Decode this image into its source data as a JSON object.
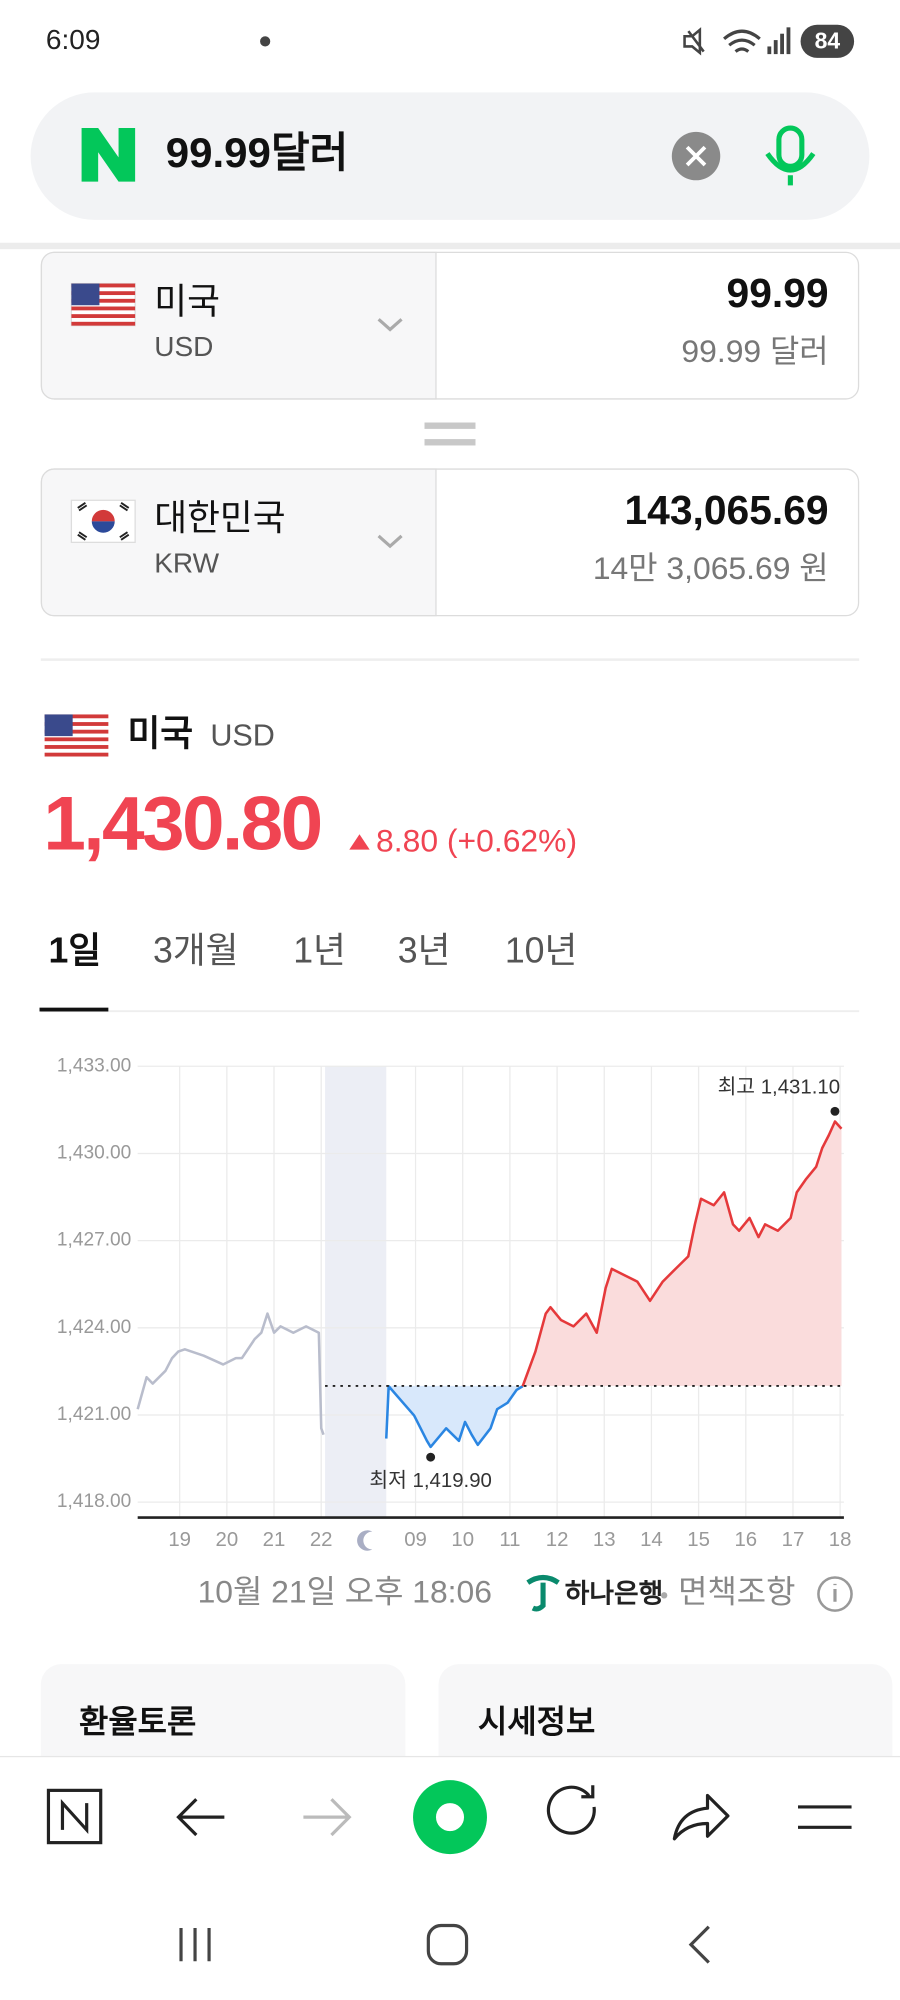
{
  "status_bar": {
    "time": "6:09",
    "battery": "84"
  },
  "search": {
    "query": "99.99달러"
  },
  "converter": {
    "from": {
      "country": "미국",
      "code": "USD",
      "amount": "99.99",
      "amount_text": "99.99 달러"
    },
    "to": {
      "country": "대한민국",
      "code": "KRW",
      "amount": "143,065.69",
      "amount_text": "14만 3,065.69 원"
    }
  },
  "quote": {
    "country": "미국",
    "code": "USD",
    "price": "1,430.80",
    "change": "8.80 (+0.62%)"
  },
  "tabs": [
    "1일",
    "3개월",
    "1년",
    "3년",
    "10년"
  ],
  "chart_data": {
    "type": "line",
    "xlim": [
      0.11,
      15.08
    ],
    "ylim": [
      1417.47,
      1433
    ],
    "xticks": [
      {
        "value": 1,
        "label": "19"
      },
      {
        "value": 2,
        "label": "20"
      },
      {
        "value": 3,
        "label": "21"
      },
      {
        "value": 4,
        "label": "22"
      },
      {
        "value": 6,
        "label": "09"
      },
      {
        "value": 7,
        "label": "10"
      },
      {
        "value": 8,
        "label": "11"
      },
      {
        "value": 9,
        "label": "12"
      },
      {
        "value": 10,
        "label": "13"
      },
      {
        "value": 11,
        "label": "14"
      },
      {
        "value": 12,
        "label": "15"
      },
      {
        "value": 13,
        "label": "16"
      },
      {
        "value": 14,
        "label": "17"
      },
      {
        "value": 15,
        "label": "18"
      }
    ],
    "yticks": [
      {
        "value": 1418,
        "label": "1,418.00"
      },
      {
        "value": 1421,
        "label": "1,421.00"
      },
      {
        "value": 1424,
        "label": "1,424.00"
      },
      {
        "value": 1427,
        "label": "1,427.00"
      },
      {
        "value": 1430,
        "label": "1,430.00"
      },
      {
        "value": 1433,
        "label": "1,433.00"
      }
    ],
    "grid": true,
    "reference_line": 1422,
    "series": [
      {
        "color": "#b9bdcc",
        "x": [
          0.11,
          0.3,
          0.43,
          0.7,
          0.84,
          0.97,
          1.11,
          1.51,
          1.92,
          2.19,
          2.32,
          2.59,
          2.73,
          2.86,
          3.0,
          3.14,
          3.41,
          3.68,
          3.95,
          4.0,
          4.05
        ],
        "values": [
          1421.2,
          1422.3,
          1422.08,
          1422.52,
          1422.96,
          1423.18,
          1423.26,
          1423.04,
          1422.74,
          1422.96,
          1422.96,
          1423.61,
          1423.83,
          1424.49,
          1423.83,
          1424.05,
          1423.83,
          1424.05,
          1423.83,
          1420.54,
          1420.32
        ]
      },
      {
        "color": "#2b86e2",
        "area_color": "#d8e8fb",
        "x": [
          5.38,
          5.43,
          5.97,
          6.24,
          6.32,
          6.65,
          6.92,
          7.05,
          7.19,
          7.32,
          7.59,
          7.73,
          7.95,
          8.14,
          8.27
        ],
        "values": [
          1420.19,
          1421.99,
          1420.98,
          1420.11,
          1419.9,
          1420.54,
          1420.11,
          1420.76,
          1420.32,
          1419.97,
          1420.54,
          1421.2,
          1421.42,
          1421.86,
          1421.99
        ]
      },
      {
        "color": "#e5393b",
        "area_color": "#fadcdc",
        "x": [
          8.27,
          8.54,
          8.76,
          8.86,
          9.08,
          9.35,
          9.62,
          9.84,
          10.03,
          10.16,
          10.43,
          10.7,
          10.97,
          11.24,
          11.51,
          11.78,
          11.92,
          12.05,
          12.32,
          12.54,
          12.73,
          12.86,
          13.08,
          13.27,
          13.41,
          13.68,
          13.95,
          14.08,
          14.27,
          14.49,
          14.62,
          14.76,
          14.89,
          15.03
        ],
        "values": [
          1421.99,
          1423.18,
          1424.49,
          1424.71,
          1424.27,
          1424.05,
          1424.49,
          1423.83,
          1425.37,
          1426.03,
          1425.81,
          1425.59,
          1424.93,
          1425.59,
          1426.03,
          1426.46,
          1427.56,
          1428.44,
          1428.22,
          1428.66,
          1427.56,
          1427.34,
          1427.78,
          1427.12,
          1427.56,
          1427.34,
          1427.78,
          1428.66,
          1429.1,
          1429.54,
          1430.19,
          1430.63,
          1431.1,
          1430.85
        ]
      }
    ],
    "annotations": [
      {
        "text": "최저 1,419.90",
        "x": 6.32,
        "y": 1419.9
      },
      {
        "text": "최고 1,431.10",
        "x": 14.89,
        "y": 1431.1
      }
    ]
  },
  "footer": {
    "timestamp": "10월 21일 오후 18:06",
    "bank": "하나은행",
    "disclaimer": "면책조항"
  },
  "cards": [
    "환율토론",
    "시세정보"
  ]
}
